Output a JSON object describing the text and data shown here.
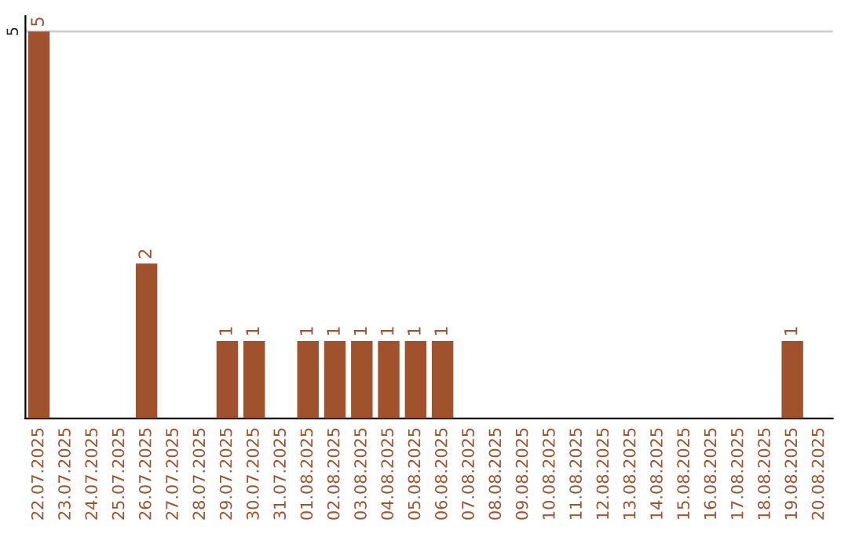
{
  "chart_data": {
    "type": "bar",
    "categories": [
      "22.07.2025",
      "23.07.2025",
      "24.07.2025",
      "25.07.2025",
      "26.07.2025",
      "27.07.2025",
      "28.07.2025",
      "29.07.2025",
      "30.07.2025",
      "31.07.2025",
      "01.08.2025",
      "02.08.2025",
      "03.08.2025",
      "04.08.2025",
      "05.08.2025",
      "06.08.2025",
      "07.08.2025",
      "08.08.2025",
      "09.08.2025",
      "10.08.2025",
      "11.08.2025",
      "12.08.2025",
      "13.08.2025",
      "14.08.2025",
      "15.08.2025",
      "16.08.2025",
      "17.08.2025",
      "18.08.2025",
      "19.08.2025",
      "20.08.2025"
    ],
    "values": [
      5,
      0,
      0,
      0,
      2,
      0,
      0,
      1,
      1,
      0,
      1,
      1,
      1,
      1,
      1,
      1,
      0,
      0,
      0,
      0,
      0,
      0,
      0,
      0,
      0,
      0,
      0,
      0,
      1,
      0
    ],
    "value_labels": [
      "5",
      null,
      null,
      null,
      "2",
      null,
      null,
      "1",
      "1",
      null,
      "1",
      "1",
      "1",
      "1",
      "1",
      "1",
      null,
      null,
      null,
      null,
      null,
      null,
      null,
      null,
      null,
      null,
      null,
      null,
      "1",
      null
    ],
    "color": "#a0522d",
    "ylim": [
      0,
      5.2
    ],
    "yticks": [
      5
    ],
    "grid": "y",
    "legend": false
  }
}
